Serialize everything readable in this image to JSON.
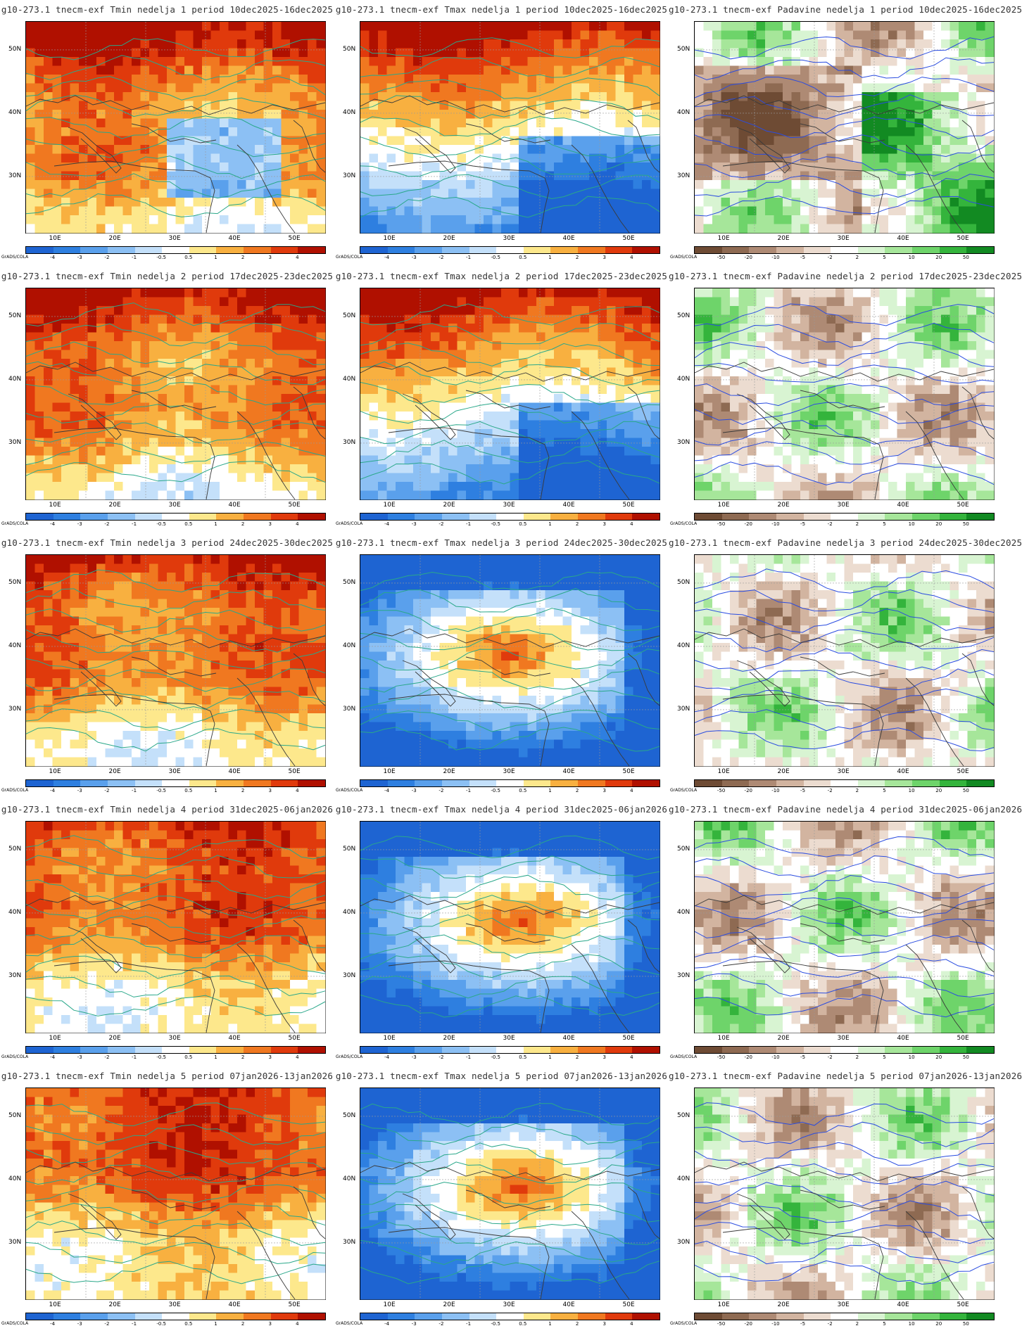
{
  "rows": [
    {
      "tmin": "g10-273.1 tnecm-exf Tmin nedelja 1 period 10dec2025-16dec2025",
      "tmax": "g10-273.1 tnecm-exf Tmax nedelja 1 period 10dec2025-16dec2025",
      "precip": "g10-273.1 tnecm-exf Padavine nedelja 1 period 10dec2025-16dec2025"
    },
    {
      "tmin": "g10-273.1 tnecm-exf Tmin nedelja 2 period 17dec2025-23dec2025",
      "tmax": "g10-273.1 tnecm-exf Tmax nedelja 2 period 17dec2025-23dec2025",
      "precip": "g10-273.1 tnecm-exf Padavine nedelja 2 period 17dec2025-23dec2025"
    },
    {
      "tmin": "g10-273.1 tnecm-exf Tmin nedelja 3 period 24dec2025-30dec2025",
      "tmax": "g10-273.1 tnecm-exf Tmax nedelja 3 period 24dec2025-30dec2025",
      "precip": "g10-273.1 tnecm-exf Padavine nedelja 3 period 24dec2025-30dec2025"
    },
    {
      "tmin": "g10-273.1 tnecm-exf Tmin nedelja 4 period 31dec2025-06jan2026",
      "tmax": "g10-273.1 tnecm-exf Tmax nedelja 4 period 31dec2025-06jan2026",
      "precip": "g10-273.1 tnecm-exf Padavine nedelja 4 period 31dec2025-06jan2026"
    },
    {
      "tmin": "g10-273.1 tnecm-exf Tmin nedelja 5 period 07jan2026-13jan2026",
      "tmax": "g10-273.1 tnecm-exf Tmax nedelja 5 period 07jan2026-13jan2026",
      "precip": "g10-273.1 tnecm-exf Padavine nedelja 5 period 07jan2026-13jan2026"
    }
  ],
  "axes": {
    "lat_labels": [
      "50N",
      "40N",
      "30N"
    ],
    "lon_labels": [
      "10E",
      "20E",
      "30E",
      "40E",
      "50E"
    ]
  },
  "credit": "GrADS/COLA",
  "temp_scale": {
    "labels": [
      "-4",
      "-3",
      "-2",
      "-1",
      "-0.5",
      "0.5",
      "1",
      "2",
      "3",
      "4"
    ],
    "colors": [
      "#1e64d2",
      "#2e7fe0",
      "#5aa0ec",
      "#8cc0f4",
      "#c4e0fa",
      "#ffffff",
      "#fde88c",
      "#f8b040",
      "#f07820",
      "#e03a0c",
      "#b01000"
    ]
  },
  "precip_scale": {
    "labels": [
      "-50",
      "-20",
      "-10",
      "-5",
      "-2",
      "2",
      "5",
      "10",
      "20",
      "50"
    ],
    "colors": [
      "#6e4b34",
      "#8e6a52",
      "#ae8a74",
      "#d2b4a0",
      "#ecdcd0",
      "#ffffff",
      "#d8f4d2",
      "#a6e69a",
      "#6ed46a",
      "#34b43c",
      "#128a22"
    ]
  }
}
